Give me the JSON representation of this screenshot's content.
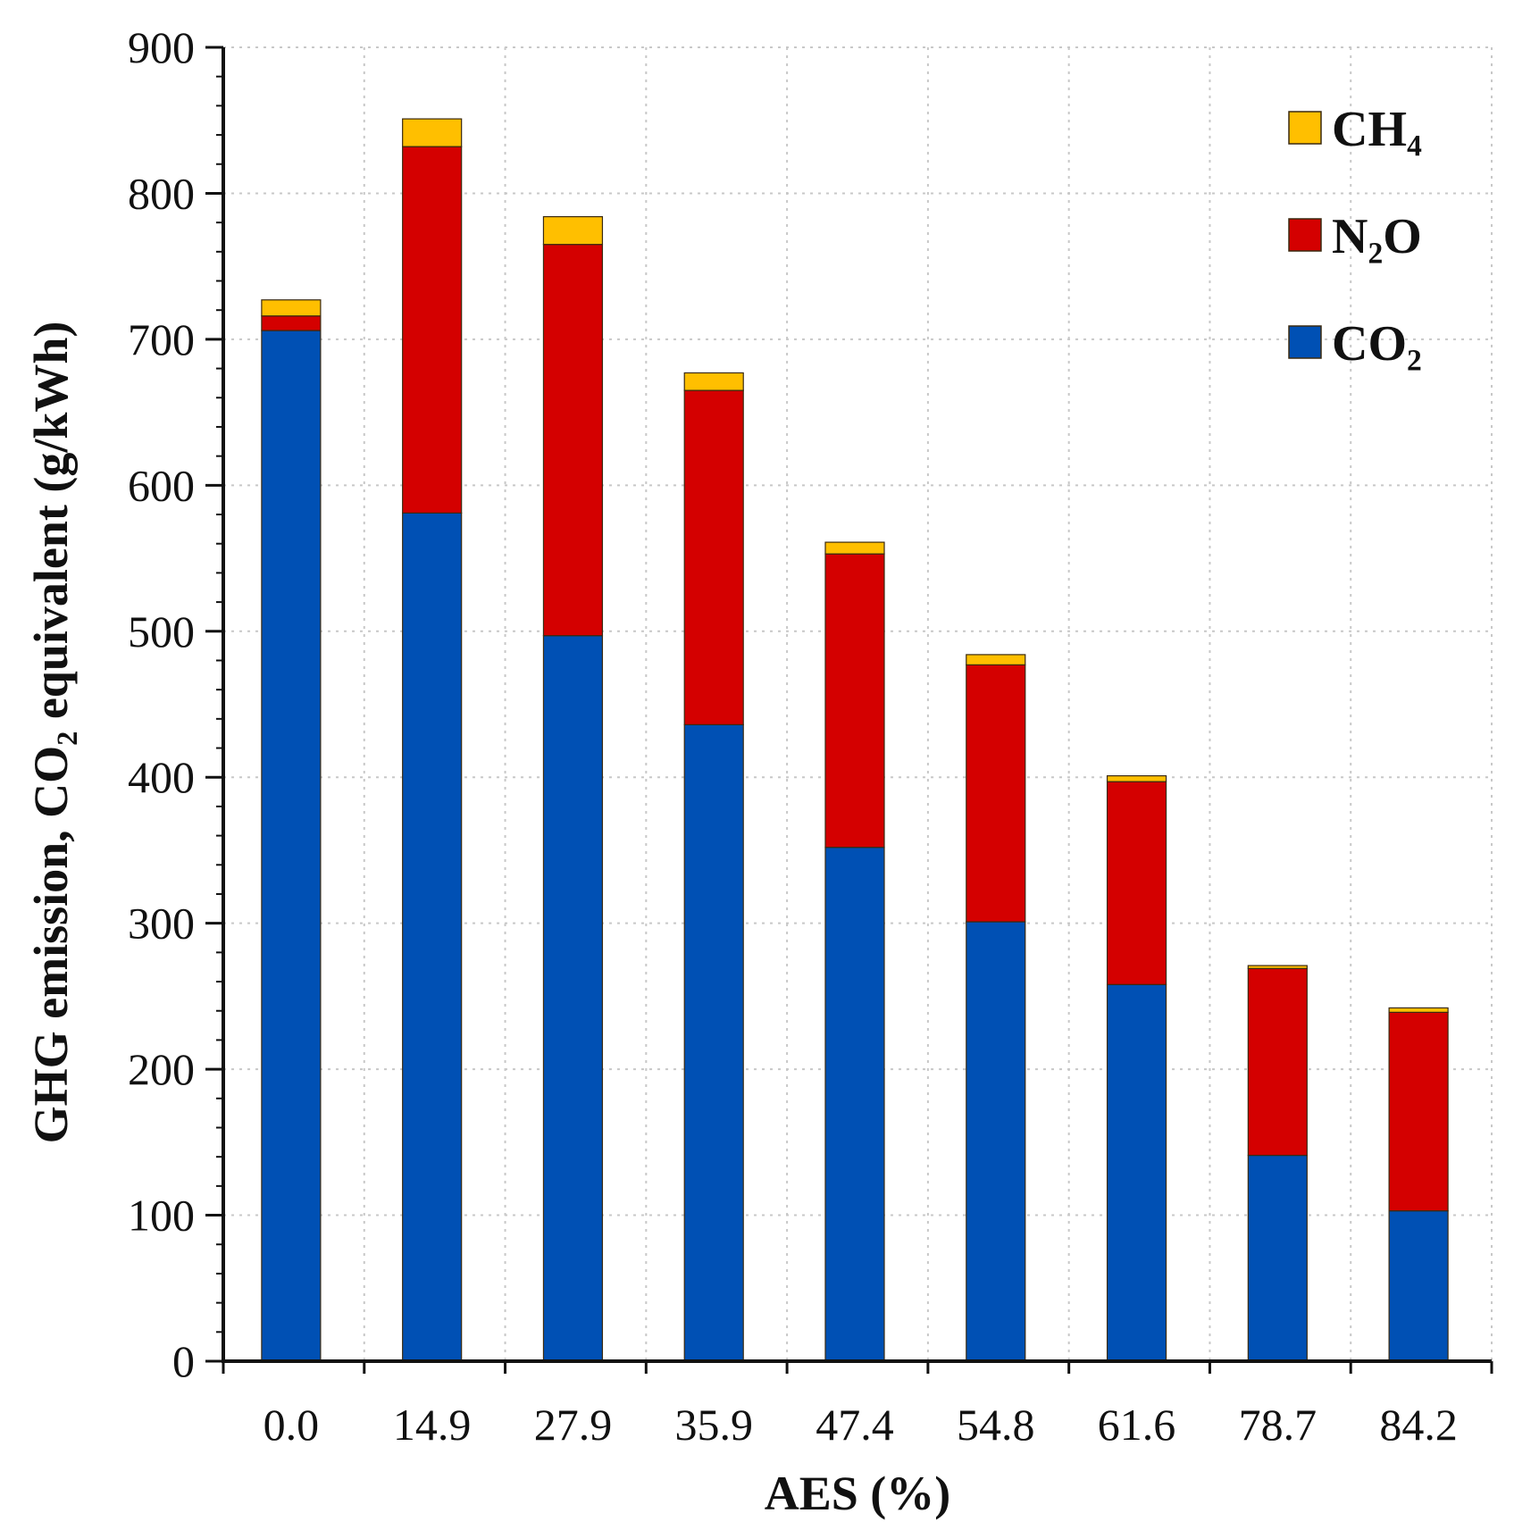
{
  "chart_data": {
    "type": "bar",
    "stacked": true,
    "title": "",
    "xlabel": "AES (%)",
    "ylabel": "GHG emission, CO₂ equivalent (g/kWh)",
    "ylim": [
      0,
      900
    ],
    "yticks": [
      0,
      100,
      200,
      300,
      400,
      500,
      600,
      700,
      800,
      900
    ],
    "grid": true,
    "legend_position": "top-right",
    "categories": [
      "0.0",
      "14.9",
      "27.9",
      "35.9",
      "47.4",
      "54.8",
      "61.6",
      "78.7",
      "84.2"
    ],
    "series": [
      {
        "name": "CO₂",
        "color": "#0050b4",
        "values": [
          706,
          581,
          497,
          436,
          352,
          301,
          258,
          141,
          103
        ]
      },
      {
        "name": "N₂O",
        "color": "#d40000",
        "values": [
          10,
          251,
          268,
          229,
          201,
          176,
          139,
          128,
          136
        ]
      },
      {
        "name": "CH₄",
        "color": "#ffbf00",
        "values": [
          11,
          19,
          19,
          12,
          8,
          7,
          4,
          2,
          3
        ]
      }
    ],
    "legend_order": [
      "CH₄",
      "N₂O",
      "CO₂"
    ]
  }
}
